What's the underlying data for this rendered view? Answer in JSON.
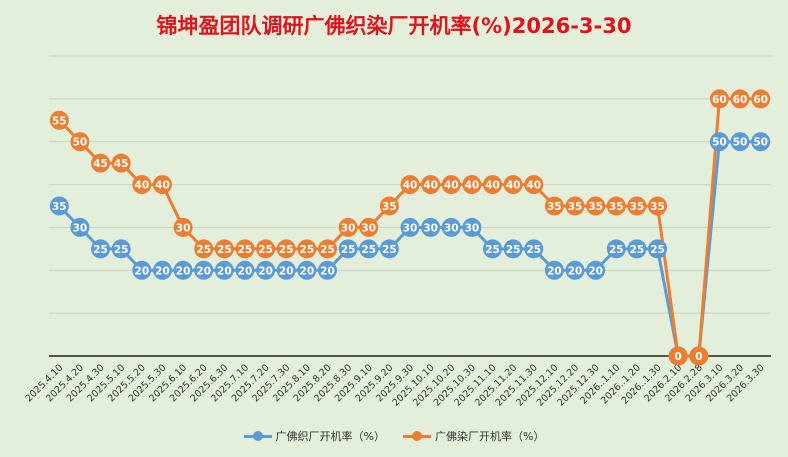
{
  "chart_data": {
    "type": "line",
    "title": "锦坤盈团队调研广佛织染厂开机率(%)2026-3-30",
    "categories": [
      "2025.4.10",
      "2025.4.20",
      "2025.4.30",
      "2025.5.10",
      "2025.5.20",
      "2025.5.30",
      "2025.6.10",
      "2025.6.20",
      "2025.6.30",
      "2025.7.10",
      "2025.7.20",
      "2025.7.30",
      "2025.8.10",
      "2025.8.20",
      "2025.8.30",
      "2025.9.10",
      "2025.9.20",
      "2025.9.30",
      "2025.10.10",
      "2025.10.20",
      "2025.10.30",
      "2025.11.10",
      "2025.11.20",
      "2025.11.30",
      "2025.12.10",
      "2025.12.20",
      "2025.12.30",
      "2026..1.10",
      "2026..1.20",
      "2026..1.30",
      "2026.2.10",
      "2026.2.28",
      "2026.3.10",
      "2026.3.20",
      "2026.3.30"
    ],
    "series": [
      {
        "name": "广佛织厂开机率（%）",
        "color": "#5b9bd5",
        "values": [
          35,
          30,
          25,
          25,
          20,
          20,
          20,
          20,
          20,
          20,
          20,
          20,
          20,
          20,
          25,
          25,
          25,
          30,
          30,
          30,
          30,
          25,
          25,
          25,
          20,
          20,
          20,
          25,
          25,
          25,
          0,
          0,
          50,
          50,
          50
        ]
      },
      {
        "name": "广佛染厂开机率（%）",
        "color": "#ed7d31",
        "values": [
          55,
          50,
          45,
          45,
          40,
          40,
          30,
          25,
          25,
          25,
          25,
          25,
          25,
          25,
          30,
          30,
          35,
          40,
          40,
          40,
          40,
          40,
          40,
          40,
          35,
          35,
          35,
          35,
          35,
          35,
          0,
          0,
          60,
          60,
          60
        ]
      }
    ],
    "ylim": [
      0,
      70
    ],
    "grid": true,
    "legend": "bottom"
  }
}
